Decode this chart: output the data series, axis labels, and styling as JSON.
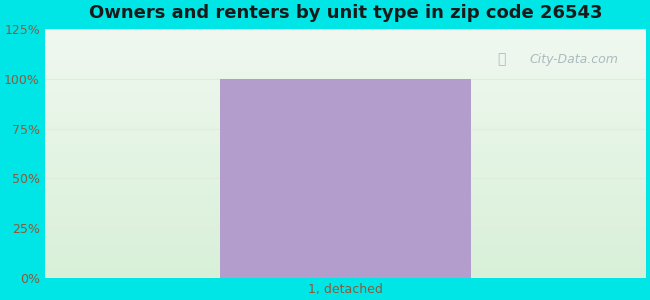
{
  "title": "Owners and renters by unit type in zip code 26543",
  "title_fontsize": 13,
  "categories": [
    "1, detached"
  ],
  "bar_values": [
    100
  ],
  "bar_color": "#b39dcc",
  "bar_width": 0.5,
  "bar_x": [
    0
  ],
  "xlim": [
    -0.6,
    0.6
  ],
  "ylim": [
    0,
    125
  ],
  "yticks": [
    0,
    25,
    50,
    75,
    100,
    125
  ],
  "yticklabels": [
    "0%",
    "25%",
    "50%",
    "75%",
    "100%",
    "125%"
  ],
  "bg_outer_color": "#00e5e5",
  "bg_top_color": "#f0f8f0",
  "bg_bottom_color": "#d8f0d8",
  "watermark_text": "City-Data.com",
  "grid_color": "#e0ece0",
  "tick_label_color": "#8b5a3c",
  "tick_label_fontsize": 9,
  "title_color": "#1a1a1a"
}
